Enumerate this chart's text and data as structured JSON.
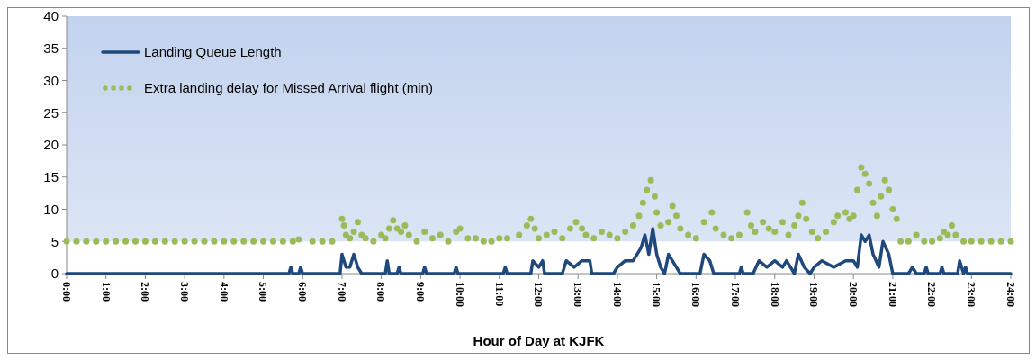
{
  "chart_data": {
    "type": "line",
    "xlabel": "Hour of Day at KJFK",
    "xlim": [
      0,
      24
    ],
    "xticks": [
      {
        "value": 0,
        "label": "0:00"
      },
      {
        "value": 1,
        "label": "1:00"
      },
      {
        "value": 2,
        "label": "2:00"
      },
      {
        "value": 3,
        "label": "3:00"
      },
      {
        "value": 4,
        "label": "4:00"
      },
      {
        "value": 5,
        "label": "5:00"
      },
      {
        "value": 6,
        "label": "6:00"
      },
      {
        "value": 7,
        "label": "7:00"
      },
      {
        "value": 8,
        "label": "8:00"
      },
      {
        "value": 9,
        "label": "9:00"
      },
      {
        "value": 10,
        "label": "10:00"
      },
      {
        "value": 11,
        "label": "11:00"
      },
      {
        "value": 12,
        "label": "12:00"
      },
      {
        "value": 13,
        "label": "13:00"
      },
      {
        "value": 14,
        "label": "14:00"
      },
      {
        "value": 15,
        "label": "15:00"
      },
      {
        "value": 16,
        "label": "16:00"
      },
      {
        "value": 17,
        "label": "17:00"
      },
      {
        "value": 18,
        "label": "18:00"
      },
      {
        "value": 19,
        "label": "19:00"
      },
      {
        "value": 20,
        "label": "20:00"
      },
      {
        "value": 21,
        "label": "21:00"
      },
      {
        "value": 22,
        "label": "22:00"
      },
      {
        "value": 23,
        "label": "23:00"
      },
      {
        "value": 24,
        "label": "24:00"
      }
    ],
    "ylim": [
      0,
      40
    ],
    "yticks": [
      0,
      5,
      10,
      15,
      20,
      25,
      30,
      35,
      40
    ],
    "grid": false,
    "legend": "top left",
    "bands": [
      {
        "axis": "y",
        "from": 5,
        "to": 40,
        "color": "#c3d3ee"
      }
    ],
    "series": [
      {
        "name": "Landing Queue Length",
        "type": "line",
        "color": "#1f497d",
        "line_style": "solid",
        "marker": "none",
        "x": [
          0,
          5.65,
          5.7,
          5.75,
          5.9,
          5.95,
          6.0,
          6.95,
          7.0,
          7.1,
          7.2,
          7.3,
          7.4,
          7.5,
          8.1,
          8.15,
          8.2,
          8.4,
          8.45,
          8.5,
          9.05,
          9.1,
          9.15,
          9.85,
          9.9,
          9.95,
          11.1,
          11.15,
          11.2,
          11.8,
          11.85,
          12.0,
          12.1,
          12.15,
          12.6,
          12.7,
          12.9,
          13.1,
          13.3,
          13.35,
          13.9,
          14.0,
          14.2,
          14.4,
          14.5,
          14.6,
          14.7,
          14.8,
          14.9,
          15.0,
          15.1,
          15.2,
          15.3,
          15.5,
          15.6,
          16.1,
          16.2,
          16.35,
          16.45,
          17.1,
          17.15,
          17.2,
          17.45,
          17.6,
          17.8,
          18.0,
          18.2,
          18.3,
          18.5,
          18.6,
          18.75,
          18.9,
          19.0,
          19.2,
          19.5,
          19.8,
          20.0,
          20.1,
          20.2,
          20.3,
          20.4,
          20.5,
          20.65,
          20.75,
          20.9,
          21.0,
          21.4,
          21.5,
          21.6,
          21.8,
          21.85,
          21.9,
          22.2,
          22.25,
          22.3,
          22.65,
          22.7,
          22.8,
          22.85,
          22.9,
          24
        ],
        "values": [
          0,
          0,
          1,
          0,
          0,
          1,
          0,
          0,
          3,
          1,
          1,
          3,
          1,
          0,
          0,
          2,
          0,
          0,
          1,
          0,
          0,
          1,
          0,
          0,
          1,
          0,
          0,
          1,
          0,
          0,
          2,
          1,
          2,
          0,
          0,
          2,
          1,
          2,
          2,
          0,
          0,
          1,
          2,
          2,
          3,
          4,
          6,
          3,
          7,
          3,
          1,
          0,
          3,
          1,
          0,
          0,
          3,
          2,
          0,
          0,
          1,
          0,
          0,
          2,
          1,
          2,
          1,
          2,
          0,
          3,
          1,
          0,
          1,
          2,
          1,
          2,
          2,
          1,
          6,
          5,
          6,
          3,
          1,
          5,
          3,
          0,
          0,
          1,
          0,
          0,
          1,
          0,
          0,
          1,
          0,
          0,
          2,
          0,
          1,
          0,
          0
        ]
      },
      {
        "name": "Extra landing delay for Missed Arrival flight (min)",
        "type": "scatter",
        "color": "#9bbb59",
        "marker": "circle",
        "x": [
          0,
          0.25,
          0.5,
          0.75,
          1,
          1.25,
          1.5,
          1.75,
          2,
          2.25,
          2.5,
          2.75,
          3,
          3.25,
          3.5,
          3.75,
          4,
          4.25,
          4.5,
          4.75,
          5,
          5.25,
          5.5,
          5.75,
          5.9,
          6.25,
          6.5,
          6.75,
          7.0,
          7.05,
          7.1,
          7.2,
          7.3,
          7.4,
          7.5,
          7.6,
          7.8,
          8.0,
          8.1,
          8.2,
          8.3,
          8.4,
          8.5,
          8.6,
          8.7,
          8.9,
          9.1,
          9.3,
          9.5,
          9.7,
          9.9,
          10.0,
          10.2,
          10.4,
          10.6,
          10.8,
          11.0,
          11.2,
          11.5,
          11.7,
          11.8,
          11.9,
          12.0,
          12.2,
          12.4,
          12.6,
          12.8,
          12.95,
          13.1,
          13.2,
          13.4,
          13.6,
          13.8,
          14.0,
          14.2,
          14.4,
          14.55,
          14.65,
          14.75,
          14.85,
          14.95,
          15.0,
          15.1,
          15.3,
          15.4,
          15.5,
          15.6,
          15.8,
          16.0,
          16.2,
          16.4,
          16.5,
          16.7,
          16.9,
          17.1,
          17.3,
          17.4,
          17.5,
          17.7,
          17.85,
          18.0,
          18.2,
          18.35,
          18.5,
          18.6,
          18.7,
          18.8,
          18.95,
          19.1,
          19.3,
          19.5,
          19.6,
          19.8,
          19.9,
          20.0,
          20.1,
          20.2,
          20.3,
          20.4,
          20.5,
          20.6,
          20.7,
          20.8,
          20.9,
          21.0,
          21.1,
          21.2,
          21.4,
          21.6,
          21.8,
          22.0,
          22.2,
          22.3,
          22.4,
          22.5,
          22.6,
          22.8,
          23.0,
          23.25,
          23.5,
          23.75,
          24
        ],
        "values": [
          5,
          5,
          5,
          5,
          5,
          5,
          5,
          5,
          5,
          5,
          5,
          5,
          5,
          5,
          5,
          5,
          5,
          5,
          5,
          5,
          5,
          5,
          5,
          5,
          5.3,
          5,
          5,
          5,
          8.5,
          7.5,
          6,
          5.5,
          6.5,
          8,
          6,
          5.5,
          5,
          6,
          5.5,
          7,
          8.3,
          7,
          6.5,
          7.5,
          6,
          5,
          6.5,
          5.5,
          6,
          5,
          6.5,
          7,
          5.5,
          5.5,
          5,
          5,
          5.5,
          5.5,
          6,
          7.5,
          8.5,
          7,
          5.5,
          6,
          6.5,
          5.5,
          7,
          8,
          7,
          6,
          5.5,
          6.5,
          6,
          5.5,
          6.5,
          7.5,
          9,
          11,
          13,
          14.5,
          12,
          9.5,
          7.5,
          8,
          10.5,
          9,
          7,
          6,
          5.5,
          8,
          9.5,
          7,
          6,
          5.5,
          6,
          9.5,
          7.5,
          6.5,
          8,
          7,
          6.5,
          8,
          6,
          7.5,
          9,
          11,
          8.5,
          6.5,
          5.5,
          6.5,
          8,
          9,
          9.5,
          8.5,
          9,
          13,
          16.5,
          15.5,
          14,
          11,
          9,
          12,
          14.5,
          13,
          10,
          8.5,
          5,
          5,
          6,
          5,
          5,
          5.5,
          6.5,
          6,
          7.5,
          6,
          5,
          5,
          5,
          5,
          5,
          5
        ]
      }
    ]
  }
}
